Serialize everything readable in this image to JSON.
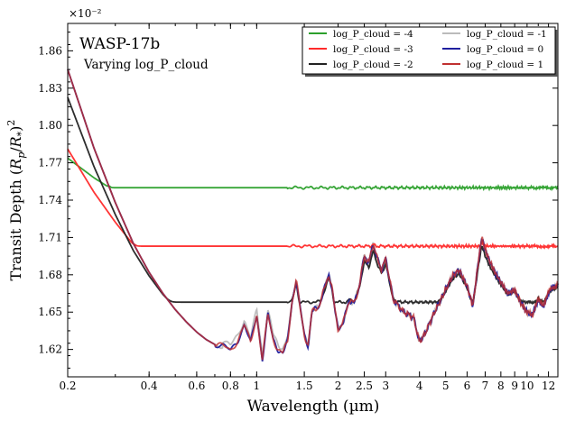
{
  "chart_data": {
    "type": "line",
    "title": "WASP-17b",
    "subtitle": "Varying log_P_cloud",
    "xlabel": "Wavelength (µm)",
    "ylabel": "Transit Depth (R_p/R_*)^2",
    "ylabel_parts": {
      "main": "Transit Depth (",
      "rp": "R",
      "p": "p",
      "slash": "/",
      "rs": "R",
      "star": "*",
      "close": ")",
      "pow": "2"
    },
    "y_offset_label": "×10⁻²",
    "x_scale": "log",
    "xlim": [
      0.2,
      13.0
    ],
    "ylim": [
      1.598,
      1.882
    ],
    "x_ticks": [
      0.2,
      0.4,
      0.6,
      0.8,
      1,
      1.5,
      2,
      2.5,
      3,
      4,
      5,
      6,
      7,
      8,
      9,
      10,
      12
    ],
    "x_tick_labels": [
      "0.2",
      "0.4",
      "0.6",
      "0.8",
      "1",
      "1.5",
      "2",
      "2.5",
      "3",
      "4",
      "5",
      "6",
      "7",
      "8",
      "9",
      "10",
      "12"
    ],
    "y_ticks": [
      1.62,
      1.65,
      1.68,
      1.71,
      1.74,
      1.77,
      1.8,
      1.83,
      1.86
    ],
    "y_tick_labels": [
      "1.62",
      "1.65",
      "1.68",
      "1.71",
      "1.74",
      "1.77",
      "1.80",
      "1.83",
      "1.86"
    ],
    "grid": false,
    "legend_position": "top-right",
    "series": [
      {
        "name": "log_P_cloud = -4",
        "color": "#2ca02c",
        "floor": 1.75
      },
      {
        "name": "log_P_cloud = -3",
        "color": "#ff2a2a",
        "floor": 1.703
      },
      {
        "name": "log_P_cloud = -2",
        "color": "#222222",
        "floor": 1.658
      },
      {
        "name": "log_P_cloud = -1",
        "color": "#bbbbbb",
        "floor": null
      },
      {
        "name": "log_P_cloud = 0",
        "color": "#1f1f9f",
        "floor": null
      },
      {
        "name": "log_P_cloud = 1",
        "color": "#c03030",
        "floor": null
      }
    ],
    "clear_spectrum": {
      "x": [
        0.2,
        0.25,
        0.3,
        0.35,
        0.4,
        0.45,
        0.5,
        0.55,
        0.6,
        0.65,
        0.7,
        0.75,
        0.8,
        0.85,
        0.9,
        0.95,
        1.0,
        1.05,
        1.1,
        1.15,
        1.2,
        1.25,
        1.3,
        1.35,
        1.4,
        1.45,
        1.5,
        1.55,
        1.6,
        1.7,
        1.8,
        1.85,
        1.9,
        1.95,
        2.0,
        2.1,
        2.2,
        2.3,
        2.4,
        2.5,
        2.6,
        2.7,
        2.8,
        2.9,
        3.0,
        3.2,
        3.5,
        3.8,
        4.0,
        4.2,
        4.5,
        4.8,
        5.0,
        5.3,
        5.6,
        6.0,
        6.3,
        6.6,
        6.8,
        7.0,
        7.3,
        7.7,
        8.0,
        8.5,
        9.0,
        9.5,
        10.0,
        10.5,
        11.0,
        11.5,
        12.0,
        12.5,
        13.0
      ],
      "y": [
        1.845,
        1.782,
        1.738,
        1.705,
        1.682,
        1.665,
        1.652,
        1.642,
        1.634,
        1.628,
        1.624,
        1.623,
        1.619,
        1.627,
        1.64,
        1.625,
        1.648,
        1.612,
        1.648,
        1.628,
        1.62,
        1.617,
        1.626,
        1.658,
        1.676,
        1.652,
        1.632,
        1.623,
        1.65,
        1.655,
        1.672,
        1.68,
        1.67,
        1.65,
        1.636,
        1.643,
        1.66,
        1.657,
        1.672,
        1.695,
        1.69,
        1.705,
        1.692,
        1.684,
        1.693,
        1.66,
        1.65,
        1.646,
        1.626,
        1.633,
        1.648,
        1.66,
        1.668,
        1.679,
        1.684,
        1.671,
        1.655,
        1.69,
        1.71,
        1.7,
        1.69,
        1.68,
        1.674,
        1.665,
        1.668,
        1.657,
        1.65,
        1.648,
        1.66,
        1.655,
        1.666,
        1.67,
        1.672
      ]
    }
  }
}
